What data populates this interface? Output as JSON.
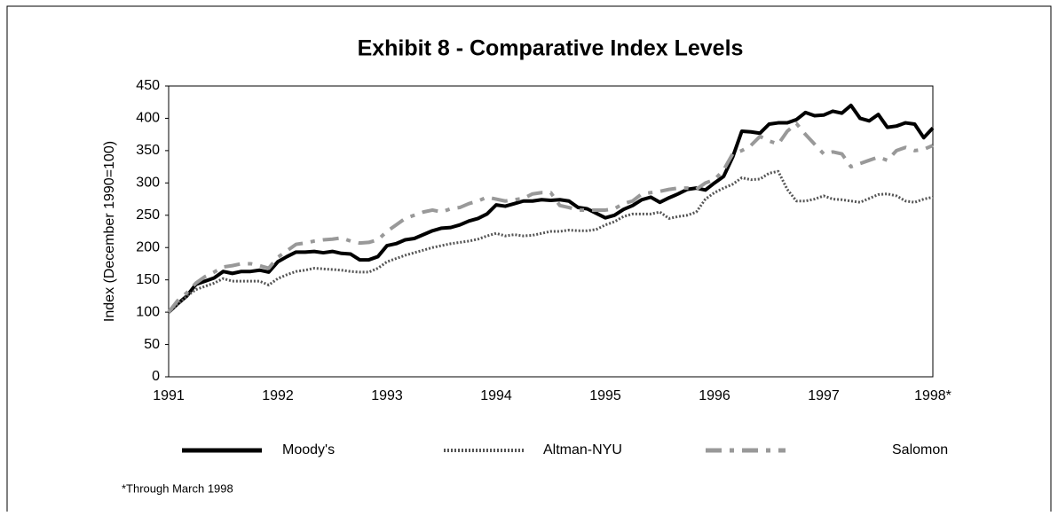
{
  "chart_data": {
    "type": "line",
    "title": "Exhibit 8 - Comparative Index Levels",
    "y_label": "Index (December 1990=100)",
    "footnote": "*Through March 1998",
    "categories": [
      "1991",
      null,
      null,
      null,
      null,
      null,
      null,
      null,
      null,
      null,
      null,
      null,
      "1992",
      null,
      null,
      null,
      null,
      null,
      null,
      null,
      null,
      null,
      null,
      null,
      "1993",
      null,
      null,
      null,
      null,
      null,
      null,
      null,
      null,
      null,
      null,
      null,
      "1994",
      null,
      null,
      null,
      null,
      null,
      null,
      null,
      null,
      null,
      null,
      null,
      "1995",
      null,
      null,
      null,
      null,
      null,
      null,
      null,
      null,
      null,
      null,
      null,
      "1996",
      null,
      null,
      null,
      null,
      null,
      null,
      null,
      null,
      null,
      null,
      null,
      "1997",
      null,
      null,
      null,
      null,
      null,
      null,
      null,
      null,
      null,
      null,
      null,
      "1998*"
    ],
    "series": [
      {
        "name": "Moody's",
        "color": "#000000",
        "values": [
          100,
          113,
          125,
          143,
          148,
          153,
          163,
          160,
          163,
          163,
          165,
          162,
          178,
          186,
          193,
          193,
          194,
          192,
          194,
          191,
          190,
          181,
          181,
          186,
          203,
          206,
          212,
          214,
          220,
          226,
          230,
          231,
          235,
          241,
          245,
          252,
          266,
          264,
          268,
          272,
          272,
          274,
          273,
          274,
          272,
          262,
          260,
          253,
          246,
          250,
          259,
          265,
          274,
          278,
          270,
          277,
          283,
          290,
          292,
          289,
          300,
          310,
          340,
          380,
          379,
          377,
          391,
          393,
          393,
          398,
          409,
          404,
          405,
          411,
          408,
          420,
          400,
          396,
          406,
          386,
          388,
          393,
          391,
          370,
          385
        ]
      },
      {
        "name": "Altman-NYU",
        "color": "#555555",
        "values": [
          100,
          112,
          125,
          135,
          140,
          145,
          152,
          148,
          148,
          148,
          148,
          142,
          152,
          158,
          163,
          165,
          168,
          167,
          166,
          165,
          163,
          162,
          162,
          168,
          178,
          183,
          188,
          192,
          196,
          200,
          203,
          206,
          208,
          210,
          213,
          218,
          222,
          218,
          220,
          218,
          219,
          222,
          225,
          225,
          227,
          226,
          226,
          228,
          235,
          240,
          248,
          252,
          252,
          252,
          255,
          245,
          248,
          250,
          255,
          275,
          285,
          292,
          298,
          308,
          305,
          306,
          315,
          318,
          290,
          272,
          272,
          275,
          280,
          275,
          274,
          272,
          270,
          276,
          282,
          283,
          280,
          272,
          270,
          275,
          278
        ]
      },
      {
        "name": "Salomon",
        "color": "#999999",
        "values": [
          100,
          118,
          130,
          145,
          155,
          162,
          170,
          172,
          175,
          175,
          172,
          168,
          185,
          195,
          205,
          207,
          210,
          212,
          213,
          215,
          210,
          207,
          208,
          212,
          225,
          235,
          245,
          250,
          255,
          258,
          255,
          260,
          262,
          268,
          272,
          278,
          275,
          272,
          274,
          276,
          283,
          285,
          285,
          265,
          262,
          258,
          258,
          258,
          258,
          260,
          268,
          272,
          283,
          285,
          287,
          290,
          292,
          292,
          290,
          300,
          305,
          320,
          345,
          350,
          358,
          372,
          365,
          360,
          380,
          392,
          375,
          360,
          345,
          348,
          345,
          325,
          330,
          335,
          340,
          335,
          350,
          355,
          350,
          352,
          358
        ]
      }
    ],
    "ylim": [
      0,
      450
    ],
    "yticks": [
      0,
      50,
      100,
      150,
      200,
      250,
      300,
      350,
      400,
      450
    ],
    "grid": false,
    "legend": "bottom"
  }
}
